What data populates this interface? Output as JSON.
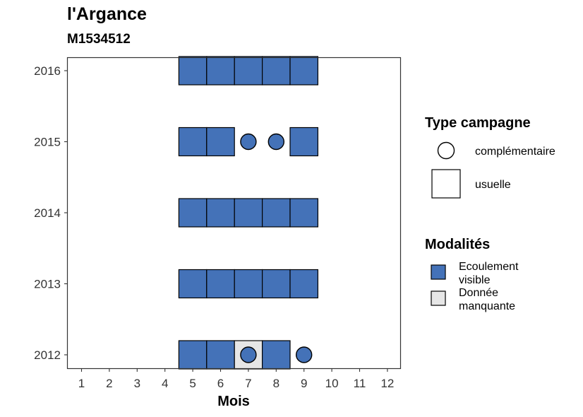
{
  "header": {
    "title": "l'Argance",
    "subtitle": "M1534512"
  },
  "chart_data": {
    "type": "heatmap",
    "xlabel": "Mois",
    "ylabel": "",
    "x_ticks": [
      "1",
      "2",
      "3",
      "4",
      "5",
      "6",
      "7",
      "8",
      "9",
      "10",
      "11",
      "12"
    ],
    "y_ticks": [
      "2012",
      "2013",
      "2014",
      "2015",
      "2016"
    ],
    "xlim": [
      1,
      12
    ],
    "ylim": [
      2012,
      2016
    ],
    "grid": false,
    "legend_placement": "right",
    "modalites": [
      {
        "name": "Ecoulement visible",
        "label_lines": [
          "Ecoulement",
          "visible"
        ],
        "color": "#4472B8"
      },
      {
        "name": "Donnée manquante",
        "label_lines": [
          "Donnée",
          "manquante"
        ],
        "color": "#E6E6E6"
      }
    ],
    "type_campagne": [
      {
        "name": "complémentaire",
        "shape": "circle"
      },
      {
        "name": "usuelle",
        "shape": "square"
      }
    ],
    "legend_titles": {
      "type_campagne": "Type campagne",
      "modalites": "Modalités"
    },
    "cells": [
      {
        "year": 2016,
        "month": 5,
        "modalite": "Ecoulement visible",
        "campagne": "usuelle"
      },
      {
        "year": 2016,
        "month": 6,
        "modalite": "Ecoulement visible",
        "campagne": "usuelle"
      },
      {
        "year": 2016,
        "month": 7,
        "modalite": "Ecoulement visible",
        "campagne": "usuelle"
      },
      {
        "year": 2016,
        "month": 8,
        "modalite": "Ecoulement visible",
        "campagne": "usuelle"
      },
      {
        "year": 2016,
        "month": 9,
        "modalite": "Ecoulement visible",
        "campagne": "usuelle"
      },
      {
        "year": 2015,
        "month": 5,
        "modalite": "Ecoulement visible",
        "campagne": "usuelle"
      },
      {
        "year": 2015,
        "month": 6,
        "modalite": "Ecoulement visible",
        "campagne": "usuelle"
      },
      {
        "year": 2015,
        "month": 7,
        "modalite": "Ecoulement visible",
        "campagne": "complémentaire"
      },
      {
        "year": 2015,
        "month": 8,
        "modalite": "Ecoulement visible",
        "campagne": "complémentaire"
      },
      {
        "year": 2015,
        "month": 9,
        "modalite": "Ecoulement visible",
        "campagne": "usuelle"
      },
      {
        "year": 2014,
        "month": 5,
        "modalite": "Ecoulement visible",
        "campagne": "usuelle"
      },
      {
        "year": 2014,
        "month": 6,
        "modalite": "Ecoulement visible",
        "campagne": "usuelle"
      },
      {
        "year": 2014,
        "month": 7,
        "modalite": "Ecoulement visible",
        "campagne": "usuelle"
      },
      {
        "year": 2014,
        "month": 8,
        "modalite": "Ecoulement visible",
        "campagne": "usuelle"
      },
      {
        "year": 2014,
        "month": 9,
        "modalite": "Ecoulement visible",
        "campagne": "usuelle"
      },
      {
        "year": 2013,
        "month": 5,
        "modalite": "Ecoulement visible",
        "campagne": "usuelle"
      },
      {
        "year": 2013,
        "month": 6,
        "modalite": "Ecoulement visible",
        "campagne": "usuelle"
      },
      {
        "year": 2013,
        "month": 7,
        "modalite": "Ecoulement visible",
        "campagne": "usuelle"
      },
      {
        "year": 2013,
        "month": 8,
        "modalite": "Ecoulement visible",
        "campagne": "usuelle"
      },
      {
        "year": 2013,
        "month": 9,
        "modalite": "Ecoulement visible",
        "campagne": "usuelle"
      },
      {
        "year": 2012,
        "month": 5,
        "modalite": "Ecoulement visible",
        "campagne": "usuelle"
      },
      {
        "year": 2012,
        "month": 6,
        "modalite": "Ecoulement visible",
        "campagne": "usuelle"
      },
      {
        "year": 2012,
        "month": 7,
        "modalite": "Donnée manquante",
        "campagne": "usuelle"
      },
      {
        "year": 2012,
        "month": 7,
        "modalite": "Ecoulement visible",
        "campagne": "complémentaire"
      },
      {
        "year": 2012,
        "month": 8,
        "modalite": "Ecoulement visible",
        "campagne": "usuelle"
      },
      {
        "year": 2012,
        "month": 9,
        "modalite": "Ecoulement visible",
        "campagne": "complémentaire"
      }
    ]
  }
}
